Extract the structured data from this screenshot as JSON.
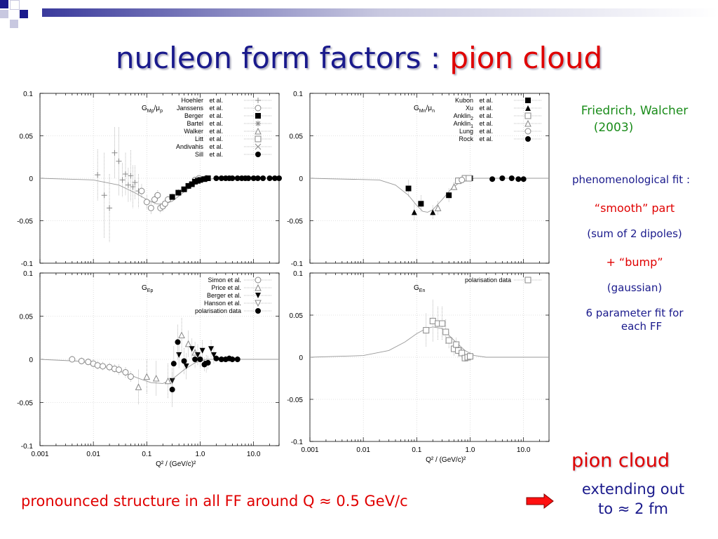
{
  "title": {
    "part1": "nucleon form factors : ",
    "part2": "pion cloud"
  },
  "colors": {
    "title_blue": "#1a1a8c",
    "accent_red": "#e00000",
    "citation_green": "#1a8c1a"
  },
  "right_panel": {
    "citation": [
      "Friedrich, Walcher",
      "(2003)"
    ],
    "fit_heading": "phenomenological fit :",
    "smooth": "“smooth” part",
    "dipoles": "(sum of 2 dipoles)",
    "bump": "+ “bump”",
    "gaussian": "(gaussian)",
    "param_fit": [
      "6 parameter fit for",
      "each FF"
    ]
  },
  "bottom": {
    "structure": "pronounced structure in all FF around Q ≈ 0.5 GeV/c",
    "arrow_icon": "red-arrow-icon",
    "pion_cloud": "pion cloud",
    "extending": [
      "extending out",
      "to ≈ 2 fm"
    ]
  },
  "chart_data": [
    {
      "type": "scatter",
      "panel": "G_Mp/mu_p",
      "label_main": "G",
      "label_sub": "Mp",
      "label_rest": "/μ",
      "label_sub2": "p",
      "xscale": "log",
      "xlim": [
        0.001,
        30
      ],
      "ylim": [
        -0.1,
        0.1
      ],
      "yticks": [
        "0.1",
        "0.05",
        "0",
        "-0.05",
        "-0.1"
      ],
      "xticks": [],
      "legend": [
        {
          "name": "Hoehler",
          "etal": "et al.",
          "marker": "plus"
        },
        {
          "name": "Janssens",
          "etal": "et al.",
          "marker": "circle"
        },
        {
          "name": "Berger",
          "etal": "et al.",
          "marker": "fsquare"
        },
        {
          "name": "Bartel",
          "etal": "et al.",
          "marker": "star"
        },
        {
          "name": "Walker",
          "etal": "et al.",
          "marker": "triangle"
        },
        {
          "name": "Litt",
          "etal": "et al.",
          "marker": "square"
        },
        {
          "name": "Andivahis",
          "etal": "et al.",
          "marker": "cross"
        },
        {
          "name": "Sill",
          "etal": "et al.",
          "marker": "fcircle"
        }
      ],
      "curve": [
        [
          0.001,
          0
        ],
        [
          0.01,
          -0.002
        ],
        [
          0.03,
          -0.008
        ],
        [
          0.06,
          -0.017
        ],
        [
          0.1,
          -0.025
        ],
        [
          0.15,
          -0.03
        ],
        [
          0.2,
          -0.031
        ],
        [
          0.3,
          -0.027
        ],
        [
          0.5,
          -0.016
        ],
        [
          0.8,
          -0.007
        ],
        [
          1.2,
          -0.002
        ],
        [
          2,
          0
        ],
        [
          30,
          0
        ]
      ],
      "series": [
        {
          "marker": "plus",
          "points": [
            [
              0.012,
              0.004,
              0.03
            ],
            [
              0.016,
              -0.02,
              0.05
            ],
            [
              0.02,
              -0.035,
              0.04
            ],
            [
              0.025,
              0.03,
              0.03
            ],
            [
              0.03,
              0.02,
              0.04
            ],
            [
              0.035,
              -0.002,
              0.02
            ],
            [
              0.04,
              0.005,
              0.025
            ],
            [
              0.045,
              -0.008,
              0.02
            ],
            [
              0.05,
              0.003,
              0.03
            ],
            [
              0.055,
              -0.01,
              0.025
            ],
            [
              0.06,
              -0.005,
              0.02
            ],
            [
              0.07,
              -0.015,
              0.02
            ]
          ]
        },
        {
          "marker": "circle",
          "points": [
            [
              0.08,
              -0.015,
              0.008
            ],
            [
              0.1,
              -0.028,
              0.008
            ],
            [
              0.12,
              -0.035,
              0.007
            ],
            [
              0.14,
              -0.025,
              0.006
            ],
            [
              0.16,
              -0.02,
              0.006
            ],
            [
              0.18,
              -0.035,
              0.006
            ],
            [
              0.2,
              -0.033,
              0.006
            ],
            [
              0.22,
              -0.03,
              0.005
            ],
            [
              0.25,
              -0.025,
              0.004
            ],
            [
              0.8,
              -0.002,
              0.003
            ],
            [
              0.95,
              0,
              0.002
            ],
            [
              1.3,
              0,
              0.002
            ]
          ]
        },
        {
          "marker": "fsquare",
          "points": [
            [
              0.3,
              -0.022,
              0.004
            ],
            [
              0.39,
              -0.017,
              0.004
            ],
            [
              0.5,
              -0.013,
              0.003
            ],
            [
              0.6,
              -0.009,
              0.003
            ],
            [
              0.7,
              -0.007,
              0.003
            ],
            [
              0.8,
              -0.004,
              0.003
            ],
            [
              0.9,
              -0.003,
              0.002
            ],
            [
              1.0,
              -0.002,
              0.002
            ],
            [
              1.2,
              -0.001,
              0.002
            ],
            [
              1.4,
              0,
              0.002
            ]
          ]
        },
        {
          "marker": "fcircle",
          "points": [
            [
              2.0,
              0
            ],
            [
              2.5,
              0
            ],
            [
              3.0,
              0
            ],
            [
              3.5,
              0
            ],
            [
              4.0,
              0
            ],
            [
              5.0,
              0
            ],
            [
              6.0,
              0
            ],
            [
              7.0,
              0
            ],
            [
              8.0,
              0
            ],
            [
              10,
              0
            ],
            [
              12,
              0
            ],
            [
              15,
              0
            ],
            [
              20,
              0
            ],
            [
              25,
              0
            ],
            [
              30,
              0
            ]
          ]
        }
      ]
    },
    {
      "type": "scatter",
      "panel": "G_Mn/mu_n",
      "label_main": "G",
      "label_sub": "Mn",
      "label_rest": "/μ",
      "label_sub2": "n",
      "xscale": "log",
      "xlim": [
        0.001,
        30
      ],
      "ylim": [
        -0.1,
        0.1
      ],
      "yticks": [
        "0.1",
        "0.05",
        "0",
        "-0.05",
        "-0.1"
      ],
      "xticks": [],
      "legend": [
        {
          "name": "Kubon",
          "etal": "et al.",
          "marker": "fsquare"
        },
        {
          "name": "Xu",
          "etal": "et al.",
          "marker": "ftriangle"
        },
        {
          "name": "Anklin",
          "sub": "2",
          "etal": "et al.",
          "marker": "square"
        },
        {
          "name": "Anklin",
          "sub": "1",
          "etal": "et al.",
          "marker": "triangle"
        },
        {
          "name": "Lung",
          "etal": "et al.",
          "marker": "circle"
        },
        {
          "name": "Rock",
          "etal": "et al.",
          "marker": "fcircle"
        }
      ],
      "curve": [
        [
          0.001,
          0
        ],
        [
          0.02,
          -0.002
        ],
        [
          0.04,
          -0.008
        ],
        [
          0.07,
          -0.02
        ],
        [
          0.1,
          -0.032
        ],
        [
          0.13,
          -0.039
        ],
        [
          0.16,
          -0.04
        ],
        [
          0.2,
          -0.037
        ],
        [
          0.3,
          -0.025
        ],
        [
          0.45,
          -0.012
        ],
        [
          0.7,
          -0.003
        ],
        [
          1.2,
          0
        ],
        [
          30,
          0
        ]
      ],
      "series": [
        {
          "marker": "fsquare",
          "points": [
            [
              0.07,
              -0.012,
              0.01
            ],
            [
              0.12,
              -0.03,
              0.01
            ],
            [
              0.4,
              -0.02,
              0.008
            ],
            [
              1.0,
              0,
              0.003
            ]
          ]
        },
        {
          "marker": "ftriangle",
          "points": [
            [
              0.09,
              -0.04,
              0.01
            ],
            [
              0.2,
              -0.04,
              0.008
            ]
          ]
        },
        {
          "marker": "square",
          "points": [
            [
              0.6,
              -0.003,
              0.004
            ],
            [
              0.8,
              0,
              0.003
            ],
            [
              0.95,
              0,
              0.003
            ]
          ]
        },
        {
          "marker": "triangle",
          "points": [
            [
              0.25,
              -0.035,
              0.008
            ],
            [
              0.5,
              -0.01,
              0.005
            ]
          ]
        },
        {
          "marker": "circle",
          "points": [
            [
              0.7,
              -0.002,
              0.003
            ]
          ]
        },
        {
          "marker": "fcircle",
          "points": [
            [
              2.6,
              -0.001,
              0.003
            ],
            [
              4.0,
              0,
              0.003
            ],
            [
              6.0,
              0,
              0.003
            ],
            [
              8.0,
              -0.001,
              0.003
            ],
            [
              10,
              -0.001,
              0.003
            ]
          ]
        }
      ]
    },
    {
      "type": "scatter",
      "panel": "G_Ep",
      "label_main": "G",
      "label_sub": "Ep",
      "label_rest": "",
      "label_sub2": "",
      "xscale": "log",
      "xlim": [
        0.001,
        30
      ],
      "ylim": [
        -0.1,
        0.1
      ],
      "yticks": [
        "0.1",
        "0.05",
        "0",
        "-0.05",
        "-0.1"
      ],
      "xticks": [
        "0.001",
        "0.01",
        "0.1",
        "1.0",
        "10.0"
      ],
      "xlabel": "Q² / (GeV/c)²",
      "legend": [
        {
          "name": "Simon et al.",
          "marker": "circle"
        },
        {
          "name": "Price et al.",
          "marker": "triangle"
        },
        {
          "name": "Berger et al.",
          "marker": "fdtriangle"
        },
        {
          "name": "Hanson et al.",
          "marker": "dtriangle"
        },
        {
          "name": "polarisation data",
          "marker": "fcircle"
        }
      ],
      "curve": [
        [
          0.001,
          0
        ],
        [
          0.005,
          -0.002
        ],
        [
          0.01,
          -0.005
        ],
        [
          0.02,
          -0.01
        ],
        [
          0.04,
          -0.016
        ],
        [
          0.07,
          -0.022
        ],
        [
          0.12,
          -0.027
        ],
        [
          0.2,
          -0.028
        ],
        [
          0.3,
          -0.023
        ],
        [
          0.5,
          -0.012
        ],
        [
          0.8,
          -0.004
        ],
        [
          1.3,
          0
        ],
        [
          30,
          0
        ]
      ],
      "series": [
        {
          "marker": "circle",
          "points": [
            [
              0.004,
              0,
              0.004
            ],
            [
              0.006,
              -0.002,
              0.004
            ],
            [
              0.008,
              -0.003,
              0.004
            ],
            [
              0.01,
              -0.005,
              0.005
            ],
            [
              0.012,
              -0.007,
              0.005
            ],
            [
              0.015,
              -0.008,
              0.005
            ],
            [
              0.02,
              -0.009,
              0.005
            ],
            [
              0.025,
              -0.011,
              0.005
            ],
            [
              0.03,
              -0.012,
              0.006
            ],
            [
              0.04,
              -0.015,
              0.006
            ],
            [
              0.05,
              -0.02,
              0.006
            ]
          ]
        },
        {
          "marker": "triangle",
          "points": [
            [
              0.07,
              -0.032,
              0.02
            ],
            [
              0.1,
              -0.02,
              0.02
            ],
            [
              0.15,
              -0.022,
              0.02
            ],
            [
              0.25,
              -0.025,
              0.02
            ],
            [
              0.45,
              0.028,
              0.02
            ],
            [
              0.6,
              0.018,
              0.015
            ],
            [
              0.8,
              0.008,
              0.012
            ]
          ]
        },
        {
          "marker": "fdtriangle",
          "points": [
            [
              0.3,
              -0.025,
              0.015
            ],
            [
              0.4,
              0.005,
              0.015
            ],
            [
              0.55,
              -0.008,
              0.015
            ],
            [
              0.7,
              0.012,
              0.012
            ],
            [
              0.9,
              0.005,
              0.012
            ],
            [
              1.1,
              0.01,
              0.012
            ],
            [
              1.3,
              -0.005,
              0.01
            ],
            [
              1.6,
              0.012,
              0.01
            ],
            [
              1.8,
              0.005,
              0.01
            ]
          ]
        },
        {
          "marker": "fcircle",
          "points": [
            [
              0.3,
              -0.035,
              0.02
            ],
            [
              0.32,
              -0.005,
              0.02
            ],
            [
              0.38,
              0.02,
              0.02
            ],
            [
              0.5,
              -0.002,
              0.015
            ],
            [
              0.8,
              0,
              0.01
            ],
            [
              1.0,
              0,
              0.01
            ],
            [
              1.2,
              -0.006,
              0.008
            ],
            [
              1.4,
              -0.004,
              0.008
            ],
            [
              2.0,
              0.001,
              0.004
            ],
            [
              2.5,
              0,
              0.004
            ],
            [
              3.0,
              0,
              0.004
            ],
            [
              3.5,
              0.001,
              0.004
            ],
            [
              4.0,
              0,
              0.004
            ],
            [
              5.0,
              0,
              0.004
            ]
          ]
        }
      ]
    },
    {
      "type": "scatter",
      "panel": "G_En",
      "label_main": "G",
      "label_sub": "En",
      "label_rest": "",
      "label_sub2": "",
      "xscale": "log",
      "xlim": [
        0.001,
        30
      ],
      "ylim": [
        -0.1,
        0.1
      ],
      "yticks": [
        "0.1",
        "0.05",
        "0",
        "-0.05",
        "-0.1"
      ],
      "xticks": [
        "0.001",
        "0.01",
        "0.1",
        "1.0",
        "10.0"
      ],
      "xlabel": "Q² / (GeV/c)²",
      "legend": [
        {
          "name": "polarisation data",
          "marker": "square"
        }
      ],
      "curve": [
        [
          0.001,
          0
        ],
        [
          0.01,
          0.002
        ],
        [
          0.03,
          0.008
        ],
        [
          0.06,
          0.018
        ],
        [
          0.1,
          0.028
        ],
        [
          0.15,
          0.034
        ],
        [
          0.2,
          0.036
        ],
        [
          0.3,
          0.034
        ],
        [
          0.5,
          0.02
        ],
        [
          0.8,
          0.008
        ],
        [
          1.2,
          0.002
        ],
        [
          2,
          0
        ],
        [
          30,
          0
        ]
      ],
      "series": [
        {
          "marker": "square",
          "points": [
            [
              0.15,
              0.032,
              0.02
            ],
            [
              0.2,
              0.043,
              0.025
            ],
            [
              0.25,
              0.04,
              0.02
            ],
            [
              0.3,
              0.04,
              0.02
            ],
            [
              0.35,
              0.03,
              0.015
            ],
            [
              0.4,
              0.02,
              0.01
            ],
            [
              0.5,
              0.01,
              0.008
            ],
            [
              0.55,
              0.015,
              0.008
            ],
            [
              0.6,
              0.008,
              0.008
            ],
            [
              0.7,
              0.005,
              0.006
            ],
            [
              0.8,
              -0.001,
              0.005
            ],
            [
              0.9,
              0,
              0.005
            ],
            [
              1.0,
              0.001,
              0.005
            ]
          ]
        }
      ]
    }
  ]
}
